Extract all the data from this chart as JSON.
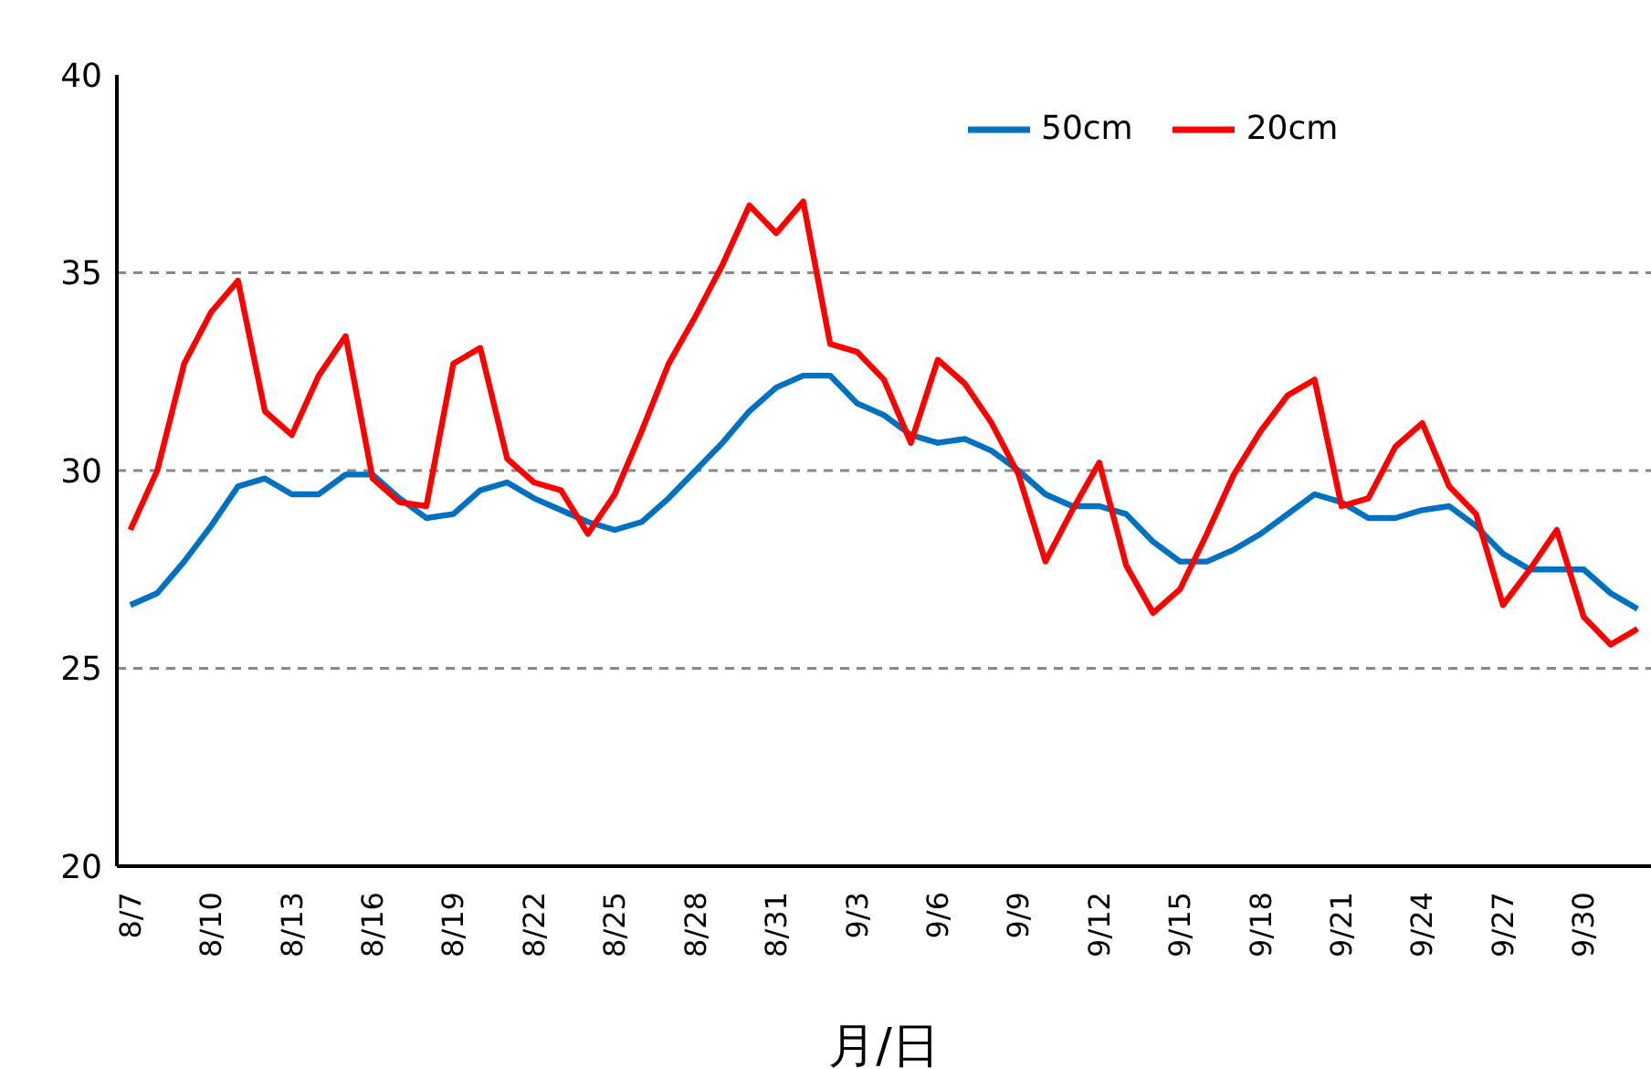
{
  "chart_data": {
    "type": "line",
    "xlabel": "月/日",
    "categories": [
      "8/7",
      null,
      null,
      "8/10",
      null,
      null,
      "8/13",
      null,
      null,
      "8/16",
      null,
      null,
      "8/19",
      null,
      null,
      "8/22",
      null,
      null,
      "8/25",
      null,
      null,
      "8/28",
      null,
      null,
      "8/31",
      null,
      null,
      "9/3",
      null,
      null,
      "9/6",
      null,
      null,
      "9/9",
      null,
      null,
      "9/12",
      null,
      null,
      "9/15",
      null,
      null,
      "9/18",
      null,
      null,
      "9/21",
      null,
      null,
      "9/24",
      null,
      null,
      "9/27",
      null,
      null,
      "9/30",
      null,
      null
    ],
    "series": [
      {
        "name": "50cm",
        "color": "#0070c0",
        "values": [
          26.6,
          26.9,
          27.7,
          28.6,
          29.6,
          29.8,
          29.4,
          29.4,
          29.9,
          29.9,
          29.3,
          28.8,
          28.9,
          29.5,
          29.7,
          29.3,
          29.0,
          28.7,
          28.5,
          28.7,
          29.3,
          30.0,
          30.7,
          31.5,
          32.1,
          32.4,
          32.4,
          31.7,
          31.4,
          30.9,
          30.7,
          30.8,
          30.5,
          30.0,
          29.4,
          29.1,
          29.1,
          28.9,
          28.2,
          27.7,
          27.7,
          28.0,
          28.4,
          28.9,
          29.4,
          29.2,
          28.8,
          28.8,
          29.0,
          29.1,
          28.6,
          27.9,
          27.5,
          27.5,
          27.5,
          26.9,
          26.5
        ]
      },
      {
        "name": "20cm",
        "color": "#ff0000",
        "values": [
          28.5,
          30.0,
          32.7,
          34.0,
          34.8,
          31.5,
          30.9,
          32.4,
          33.4,
          29.8,
          29.2,
          29.1,
          32.7,
          33.1,
          30.3,
          29.7,
          29.5,
          28.4,
          29.4,
          31.0,
          32.7,
          33.9,
          35.2,
          36.7,
          36.0,
          36.8,
          33.2,
          33.0,
          32.3,
          30.7,
          32.8,
          32.2,
          31.2,
          29.9,
          27.7,
          29.0,
          30.2,
          27.6,
          26.4,
          27.0,
          28.4,
          29.9,
          31.0,
          31.9,
          32.3,
          29.1,
          29.3,
          30.6,
          31.2,
          29.6,
          28.9,
          26.6,
          27.5,
          28.5,
          26.3,
          25.6,
          26.0
        ]
      }
    ],
    "ylim": [
      20,
      40
    ],
    "yticks": [
      20,
      25,
      30,
      35,
      40
    ],
    "grid": "y",
    "legend": "top right",
    "marker": "none",
    "line_style": "solid"
  }
}
